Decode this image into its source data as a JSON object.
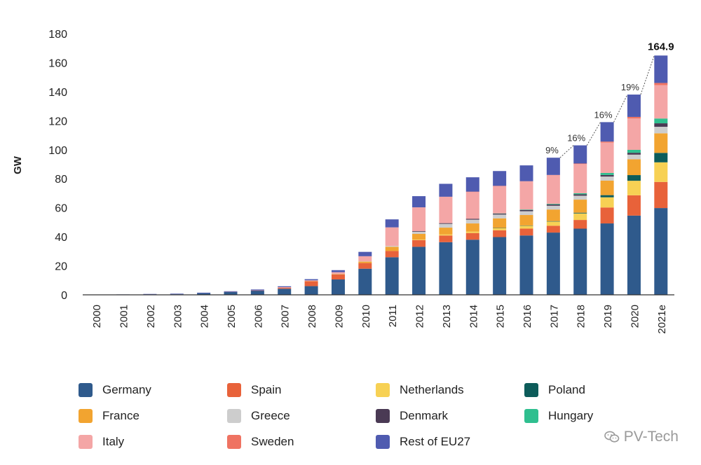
{
  "chart_data": {
    "type": "bar",
    "stacked": true,
    "title": "",
    "xlabel": "",
    "ylabel": "GW",
    "ylim": [
      0,
      180
    ],
    "yticks": [
      0,
      20,
      40,
      60,
      80,
      100,
      120,
      140,
      160,
      180
    ],
    "categories": [
      "2000",
      "2001",
      "2002",
      "2003",
      "2004",
      "2005",
      "2006",
      "2007",
      "2008",
      "2009",
      "2010",
      "2011",
      "2012",
      "2013",
      "2014",
      "2015",
      "2016",
      "2017",
      "2018",
      "2019",
      "2020",
      "2021e"
    ],
    "series": [
      {
        "name": "Germany",
        "color": "#2f5a8c",
        "values": [
          0.1,
          0.2,
          0.3,
          0.4,
          1.1,
          2.0,
          2.9,
          4.2,
          6.0,
          10.6,
          18.0,
          25.9,
          33.1,
          36.3,
          38.0,
          39.8,
          40.9,
          42.9,
          45.6,
          49.2,
          54.6,
          59.8
        ]
      },
      {
        "name": "Spain",
        "color": "#e8623a",
        "values": [
          0,
          0,
          0,
          0,
          0,
          0,
          0.1,
          0.6,
          3.4,
          3.4,
          3.9,
          4.3,
          4.6,
          4.6,
          4.6,
          4.7,
          4.7,
          4.7,
          6.0,
          11.0,
          14.0,
          18.0
        ]
      },
      {
        "name": "Netherlands",
        "color": "#f7d154",
        "values": [
          0,
          0,
          0,
          0,
          0,
          0,
          0,
          0,
          0,
          0,
          0,
          0,
          0.3,
          0.7,
          1.0,
          1.5,
          2.0,
          2.9,
          4.5,
          7.0,
          10.0,
          13.5
        ]
      },
      {
        "name": "Poland",
        "color": "#0d5c5a",
        "values": [
          0,
          0,
          0,
          0,
          0,
          0,
          0,
          0,
          0,
          0,
          0,
          0,
          0,
          0,
          0,
          0.1,
          0.2,
          0.3,
          0.5,
          1.5,
          3.9,
          6.5
        ]
      },
      {
        "name": "France",
        "color": "#f2a430",
        "values": [
          0,
          0,
          0,
          0,
          0,
          0,
          0,
          0,
          0.1,
          0.3,
          1.0,
          2.9,
          4.0,
          4.7,
          5.6,
          6.6,
          7.2,
          8.0,
          9.0,
          10.0,
          10.9,
          13.5
        ]
      },
      {
        "name": "Greece",
        "color": "#cdcdcd",
        "values": [
          0,
          0,
          0,
          0,
          0,
          0,
          0,
          0,
          0,
          0.1,
          0.2,
          0.6,
          1.5,
          2.6,
          2.6,
          2.6,
          2.6,
          2.6,
          2.7,
          2.8,
          3.2,
          4.5
        ]
      },
      {
        "name": "Denmark",
        "color": "#4a3a54",
        "values": [
          0,
          0,
          0,
          0,
          0,
          0,
          0,
          0,
          0,
          0,
          0,
          0,
          0.4,
          0.5,
          0.6,
          0.7,
          0.9,
          0.9,
          1.0,
          1.1,
          1.3,
          2.4
        ]
      },
      {
        "name": "Hungary",
        "color": "#2fbf8f",
        "values": [
          0,
          0,
          0,
          0,
          0,
          0,
          0,
          0,
          0,
          0,
          0,
          0,
          0,
          0,
          0,
          0.1,
          0.3,
          0.4,
          0.7,
          1.4,
          2.0,
          3.3
        ]
      },
      {
        "name": "Italy",
        "color": "#f4a6a6",
        "values": [
          0,
          0,
          0,
          0,
          0,
          0.1,
          0.1,
          0.5,
          0.5,
          1.2,
          3.5,
          12.8,
          16.4,
          18.2,
          18.6,
          18.9,
          19.3,
          19.7,
          20.1,
          20.9,
          21.6,
          23.0
        ]
      },
      {
        "name": "Sweden",
        "color": "#ef7362",
        "values": [
          0,
          0,
          0,
          0,
          0,
          0,
          0,
          0,
          0,
          0,
          0,
          0,
          0,
          0,
          0.1,
          0.1,
          0.2,
          0.2,
          0.4,
          0.7,
          1.1,
          1.5
        ]
      },
      {
        "name": "Rest of EU27",
        "color": "#4f5bb0",
        "values": [
          0.1,
          0.1,
          0.3,
          0.4,
          0.4,
          0.4,
          0.6,
          0.6,
          0.8,
          1.4,
          3.0,
          5.5,
          7.7,
          8.9,
          9.9,
          10.2,
          10.9,
          11.9,
          12.5,
          13.4,
          15.4,
          18.9
        ]
      }
    ],
    "totals_label": {
      "category": "2021e",
      "text": "164.9"
    },
    "growth_labels": [
      {
        "from": "2017",
        "to": "2018",
        "text": "9%"
      },
      {
        "from": "2018",
        "to": "2019",
        "text": "16%"
      },
      {
        "from": "2019",
        "to": "2020",
        "text": "16%"
      },
      {
        "from": "2020",
        "to": "2021e",
        "text": "19%"
      }
    ],
    "grid": false,
    "legend_position": "bottom"
  },
  "watermark": {
    "text": "PV-Tech",
    "icon": "wechat-icon"
  }
}
